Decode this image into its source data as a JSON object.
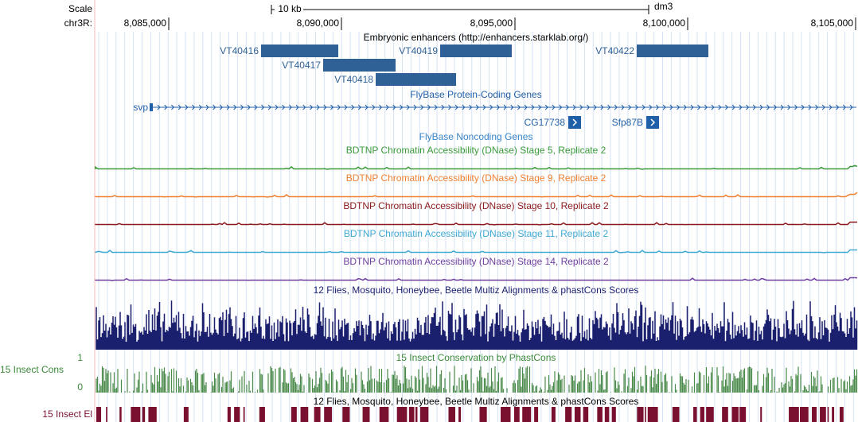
{
  "ruler": {
    "scale_label": "Scale",
    "chrom_label": "chr3R:",
    "scale_bar": "10 kb",
    "assembly": "dm3",
    "ticks": [
      "8,085,000",
      "8,090,000",
      "8,095,000",
      "8,100,000",
      "8,105,000"
    ]
  },
  "tracks": {
    "enhancers": {
      "title": "Embryonic enhancers (http://enhancers.starklab.org/)",
      "items": [
        "VT40416",
        "VT40417",
        "VT40418",
        "VT40419",
        "VT40422"
      ]
    },
    "genes": {
      "title": "FlyBase Protein-Coding Genes",
      "items": [
        "svp",
        "CG17738",
        "Sfp87B"
      ]
    },
    "noncoding": {
      "title": "FlyBase Noncoding Genes"
    },
    "dnase": [
      "BDTNP Chromatin Accessibility (DNase) Stage 5, Replicate 2",
      "BDTNP Chromatin Accessibility (DNase) Stage 9, Replicate 2",
      "BDTNP Chromatin Accessibility (DNase) Stage 10, Replicate 2",
      "BDTNP Chromatin Accessibility (DNase) Stage 11, Replicate 2",
      "BDTNP Chromatin Accessibility (DNase) Stage 14, Replicate 2"
    ],
    "multiz": {
      "title": "12 Flies, Mosquito, Honeybee, Beetle Multiz Alignments & phastCons Scores"
    },
    "phastcons": {
      "title": "15 Insect Conservation by PhastCons",
      "label": "15 Insect Cons",
      "ymax": "1",
      "ymin": "0"
    },
    "elements": {
      "title": "12 Flies, Mosquito, Honeybee, Beetle Multiz Alignments & phastCons Scores",
      "label": "15 Insect El"
    }
  }
}
